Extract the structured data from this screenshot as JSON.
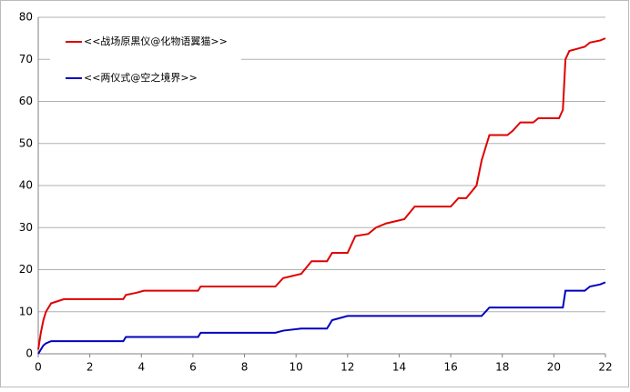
{
  "chart_data": {
    "type": "line",
    "x": [
      0,
      0.1,
      0.2,
      0.3,
      0.5,
      1,
      3.3,
      3.4,
      3.8,
      4.1,
      6.2,
      6.3,
      9.2,
      9.5,
      10.2,
      10.6,
      11.2,
      11.4,
      12,
      12.3,
      12.8,
      13.1,
      13.5,
      14.2,
      14.6,
      16,
      16.3,
      16.6,
      17,
      17.2,
      17.5,
      18.2,
      18.4,
      18.7,
      19.2,
      19.4,
      20.2,
      20.35,
      20.45,
      20.6,
      21.2,
      21.4,
      21.8,
      22
    ],
    "series": [
      {
        "name": "<<战场原黒仪@化物语翼猫>>",
        "color": "#e00000",
        "values": [
          1,
          5,
          8,
          10,
          12,
          13,
          13,
          14,
          14.5,
          15,
          15,
          16,
          16,
          18,
          19,
          22,
          22,
          24,
          24,
          28,
          28.5,
          30,
          31,
          32,
          35,
          35,
          37,
          37,
          40,
          46,
          52,
          52,
          53,
          55,
          55,
          56,
          56,
          58,
          70,
          72,
          73,
          74,
          74.5,
          75
        ]
      },
      {
        "name": "<<两仪式@空之境界>>",
        "color": "#0000c0",
        "values": [
          0,
          1,
          2,
          2.5,
          3,
          3,
          3,
          4,
          4,
          4,
          4,
          5,
          5,
          5.5,
          6,
          6,
          6,
          8,
          9,
          9,
          9,
          9,
          9,
          9,
          9,
          9,
          9,
          9,
          9,
          9,
          11,
          11,
          11,
          11,
          11,
          11,
          11,
          11,
          15,
          15,
          15,
          16,
          16.5,
          17
        ]
      }
    ],
    "xlim": [
      0,
      22
    ],
    "xticks": [
      0,
      2,
      4,
      6,
      8,
      10,
      12,
      14,
      16,
      18,
      20,
      22
    ],
    "ylim": [
      0,
      80
    ],
    "yticks": [
      0,
      10,
      20,
      30,
      40,
      50,
      60,
      70,
      80
    ],
    "grid": true
  }
}
